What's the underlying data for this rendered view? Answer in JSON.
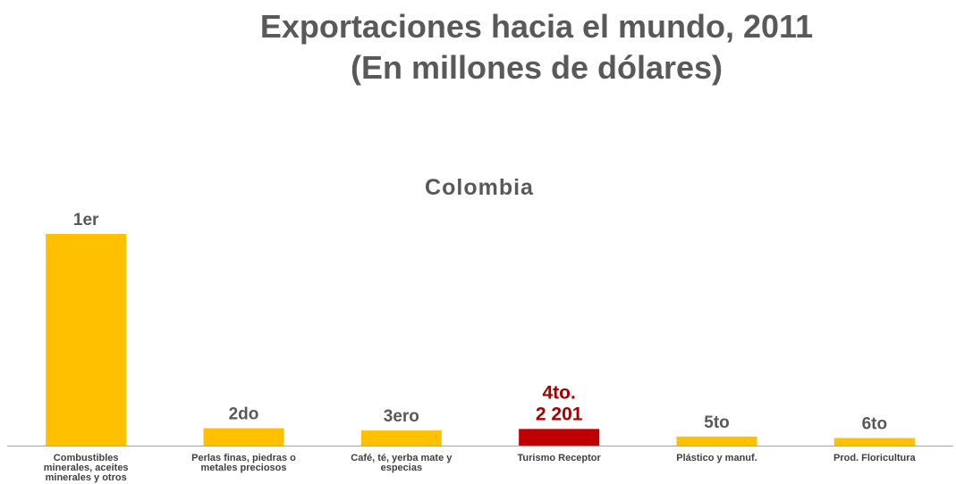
{
  "page": {
    "title_line1": "Exportaciones hacia el mundo, 2011",
    "title_line2": "(En millones de dólares)",
    "subtitle": "Colombia"
  },
  "colors": {
    "bar": "#ffc000",
    "highlight": "#c00000",
    "axis": "#a6a6a6"
  },
  "chart_data": {
    "type": "bar",
    "title": "Exportaciones hacia el mundo, 2011 (En millones de dólares)",
    "subtitle": "Colombia",
    "categories": [
      [
        "Combustibles",
        "minerales, aceites",
        "minerales y otros"
      ],
      [
        "Perlas finas, piedras o",
        "metales preciosos"
      ],
      [
        "Café, té, yerba mate y",
        "especias"
      ],
      [
        "Turismo Receptor"
      ],
      [
        "Plástico y manuf."
      ],
      [
        "Prod. Floricultura"
      ]
    ],
    "ranks": [
      [
        "1er"
      ],
      [
        "2do"
      ],
      [
        "3ero"
      ],
      [
        "4to.",
        "2 201"
      ],
      [
        "5to"
      ],
      [
        "6to"
      ]
    ],
    "values": [
      28000,
      2300,
      2000,
      2201,
      1200,
      1000
    ],
    "highlight_index": 3,
    "ylim": [
      0,
      28000
    ],
    "grid": false,
    "legend": "none"
  }
}
